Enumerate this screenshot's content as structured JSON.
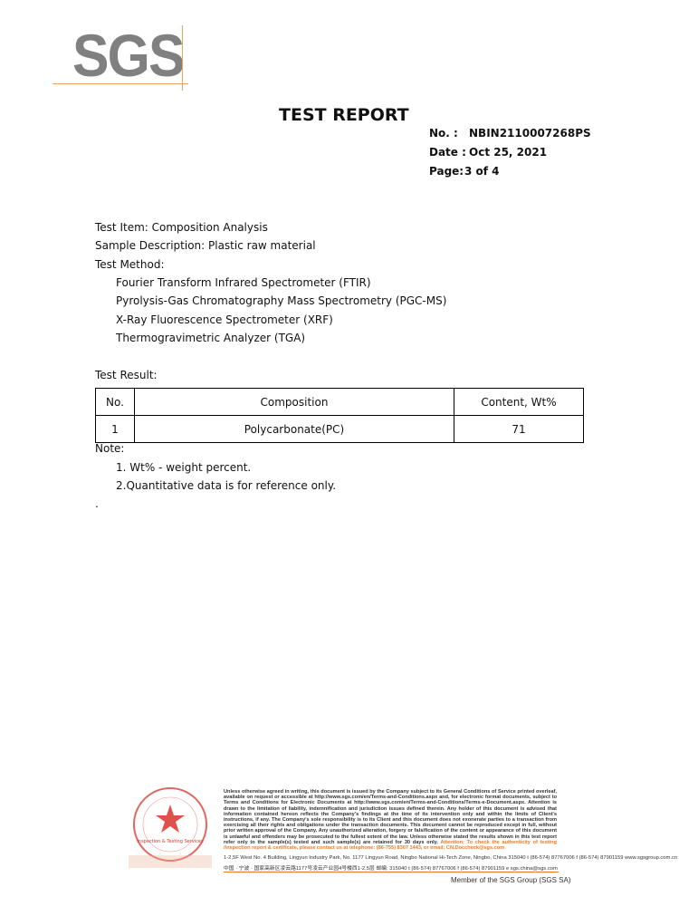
{
  "logo": {
    "text": "SGS",
    "color": "#808080",
    "accent": "#f0a060"
  },
  "header": {
    "title": "TEST REPORT",
    "no_label": "No.  :",
    "no_value": "NBIN2110007268PS",
    "date_label": "Date :",
    "date_value": "Oct 25, 2021",
    "page_label": "Page:",
    "page_value": "3 of 4"
  },
  "body": {
    "test_item": "Test Item: Composition Analysis",
    "sample_description": "Sample Description: Plastic raw material",
    "test_method_label": "Test Method:",
    "methods": [
      "Fourier Transform Infrared Spectrometer (FTIR)",
      "Pyrolysis-Gas Chromatography Mass Spectrometry (PGC-MS)",
      "X-Ray Fluorescence Spectrometer (XRF)",
      "Thermogravimetric Analyzer (TGA)"
    ],
    "test_result_label": "Test Result:"
  },
  "table": {
    "headers": [
      "No.",
      "Composition",
      "Content, Wt%"
    ],
    "rows": [
      [
        "1",
        "Polycarbonate(PC)",
        "71"
      ]
    ]
  },
  "notes": {
    "label": "Note:",
    "items": [
      "1. Wt% -  weight percent.",
      "2.Quantitative data is for reference only."
    ],
    "dot": "."
  },
  "footer": {
    "disclaimer": "Unless otherwise agreed in writing, this document is issued by the Company subject to its General Conditions of Service printed overleaf, available on request or accessible at http://www.sgs.com/en/Terms-and-Conditions.aspx and, for electronic format documents, subject to Terms and Conditions for Electronic Documents at http://www.sgs.com/en/Terms-and-Conditions/Terms-e-Document.aspx. Attention is drawn to the limitation of liability, indemnification and jurisdiction issues defined therein. Any holder of this document is advised that information contained hereon reflects the Company's findings at the time of its intervention only and within the limits of Client's instructions, if any. The Company's sole responsibility is to its Client and this document does not exonerate parties to a transaction from exercising all their rights and obligations under the transaction documents. This document cannot be reproduced except in full, without prior written approval of the Company. Any unauthorized alteration, forgery or falsification of the content or appearance of this document is unlawful and offenders may be prosecuted to the fullest extent of the law. Unless otherwise stated the results shown in this test report refer only to the sample(s) tested and such sample(s) are retained for 30 days only.",
    "attention": "Attention: To check the authenticity of testing /inspection report & certificate, please contact us at telephone: (86-755) 8307 1443, or email: CN.Doccheck@sgs.com",
    "address_en": "1-2,5F West No. 4 Building, Lingyun Industry Park, No. 1177 Lingyun Road, Ningbo National Hi-Tech Zone, Ningbo, China  315040   t  (86-574) 87767006   f  (86-574) 87901159   www.sgsgroup.com.cn",
    "address_cn": "中国 · 宁波 · 国家高新区凌云路1177号凌云产业园4号楼西1-2,5层   邮编: 315040   t  (86-574) 87767006   f  (86-574) 87901159   e  sgs.china@sgs.com",
    "member": "Member of the SGS Group (SGS SA)",
    "stamp_text": "Inspection & Testing Services",
    "stamp_color": "#d9342b",
    "accent": "#e87a2a"
  }
}
